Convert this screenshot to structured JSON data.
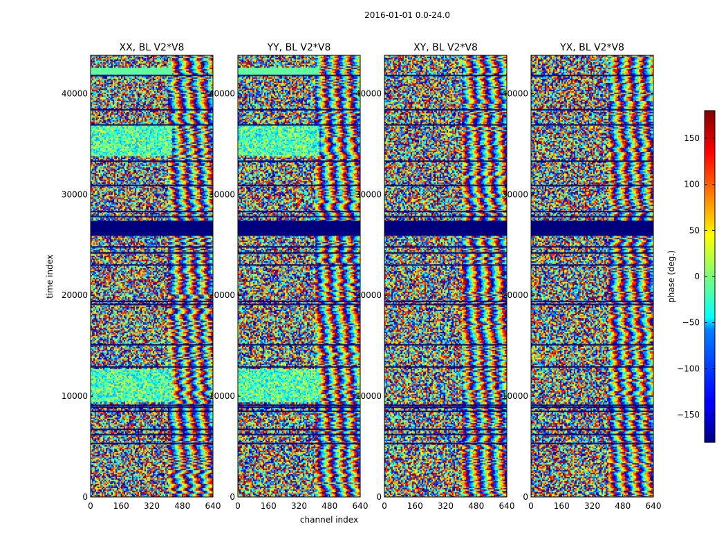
{
  "figure": {
    "suptitle": "2016-01-01 0.0-24.0",
    "xlabel": "channel index",
    "ylabel": "time index",
    "colorbar_label": "phase (deg.)"
  },
  "chart_data": {
    "type": "heatmap",
    "colormap": "jet",
    "xlim": [
      0,
      640
    ],
    "ylim": [
      0,
      43800
    ],
    "x_ticks": [
      "0",
      "160",
      "320",
      "480",
      "640"
    ],
    "y_ticks": [
      "0",
      "10000",
      "20000",
      "30000",
      "40000"
    ],
    "colorbar": {
      "range": [
        -180,
        180
      ],
      "ticks": [
        "−150",
        "−100",
        "−50",
        "0",
        "50",
        "100",
        "150"
      ],
      "tick_values": [
        -150,
        -100,
        -50,
        0,
        50,
        100,
        150
      ]
    },
    "panels": [
      {
        "title": "XX, BL V2*V8"
      },
      {
        "title": "YY, BL V2*V8"
      },
      {
        "title": "XY, BL V2*V8"
      },
      {
        "title": "YX, BL V2*V8"
      }
    ]
  }
}
